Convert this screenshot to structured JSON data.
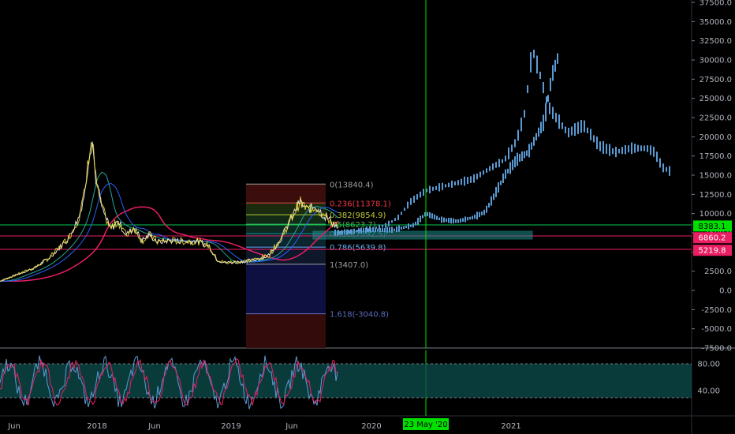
{
  "chart_data": {
    "type": "line",
    "y_axis": {
      "min": -7500,
      "max": 37500,
      "ticks": [
        "37500.0",
        "35000.0",
        "32500.0",
        "30000.0",
        "27500.0",
        "25000.0",
        "22500.0",
        "20000.0",
        "17500.0",
        "15000.0",
        "12500.0",
        "10000.0",
        "7500.0",
        "5000.0",
        "2500.0",
        "0.0",
        "-2500.0",
        "-5000.0",
        "-7500.0"
      ]
    },
    "x_axis": {
      "ticks": [
        "Jun",
        "2018",
        "Jun",
        "2019",
        "Jun",
        "2020",
        "2021"
      ],
      "crosshair_label": "23 May '20"
    },
    "price_badges": [
      {
        "label": "8383.1",
        "value": 8383.1,
        "color": "#00e000"
      },
      {
        "label": "6860.2",
        "value": 6860.2,
        "color": "#e91e63"
      },
      {
        "label": "5219.8",
        "value": 5219.8,
        "color": "#e91e63"
      }
    ],
    "fib_levels": [
      {
        "label": "0(13840.4)",
        "value": 13840.4,
        "color": "#9e9e9e"
      },
      {
        "label": "0.236(11378.1)",
        "value": 11378.1,
        "color": "#f23645"
      },
      {
        "label": "0.382(9854.9)",
        "value": 9854.9,
        "color": "#c0ca33"
      },
      {
        "label": "0.5(8623.7)",
        "value": 8623.7,
        "color": "#4caf50"
      },
      {
        "label": "0.618(7392.5)",
        "value": 7392.5,
        "color": "#089981"
      },
      {
        "label": "0.786(5639.8)",
        "value": 5639.8,
        "color": "#64b5f6"
      },
      {
        "label": "1(3407.0)",
        "value": 3407.0,
        "color": "#9e9e9e"
      },
      {
        "label": "1.618(-3040.8)",
        "value": -3040.8,
        "color": "#5c6bc0"
      }
    ],
    "historical_price": [
      [
        0,
        1200
      ],
      [
        25,
        2200
      ],
      [
        45,
        3000
      ],
      [
        62,
        4200
      ],
      [
        75,
        5500
      ],
      [
        88,
        7000
      ],
      [
        100,
        9500
      ],
      [
        108,
        13000
      ],
      [
        113,
        18000
      ],
      [
        117,
        19500
      ],
      [
        122,
        14000
      ],
      [
        130,
        10500
      ],
      [
        140,
        8000
      ],
      [
        150,
        9000
      ],
      [
        160,
        7200
      ],
      [
        170,
        8200
      ],
      [
        180,
        6500
      ],
      [
        190,
        7200
      ],
      [
        200,
        6300
      ],
      [
        215,
        6500
      ],
      [
        230,
        6400
      ],
      [
        250,
        6400
      ],
      [
        265,
        5800
      ],
      [
        275,
        4000
      ],
      [
        285,
        3600
      ],
      [
        300,
        3700
      ],
      [
        320,
        3900
      ],
      [
        340,
        4500
      ],
      [
        355,
        6500
      ],
      [
        370,
        9500
      ],
      [
        380,
        11500
      ],
      [
        390,
        10500
      ],
      [
        400,
        11000
      ],
      [
        410,
        9800
      ],
      [
        420,
        9000
      ],
      [
        430,
        8000
      ]
    ],
    "projection_upper": [
      [
        425,
        7600
      ],
      [
        450,
        7700
      ],
      [
        475,
        8100
      ],
      [
        490,
        8500
      ],
      [
        505,
        9500
      ],
      [
        520,
        11500
      ],
      [
        540,
        13000
      ],
      [
        560,
        13500
      ],
      [
        580,
        14000
      ],
      [
        600,
        14500
      ],
      [
        620,
        15800
      ],
      [
        640,
        17000
      ],
      [
        655,
        19500
      ],
      [
        665,
        23000
      ],
      [
        670,
        27000
      ],
      [
        675,
        31500
      ],
      [
        685,
        28000
      ],
      [
        695,
        24000
      ],
      [
        705,
        22500
      ],
      [
        720,
        20500
      ],
      [
        740,
        21500
      ],
      [
        760,
        18800
      ],
      [
        780,
        18000
      ],
      [
        800,
        18500
      ],
      [
        820,
        18500
      ],
      [
        830,
        18000
      ],
      [
        840,
        16000
      ],
      [
        850,
        15500
      ]
    ],
    "projection_lower": [
      [
        425,
        7400
      ],
      [
        460,
        7800
      ],
      [
        500,
        7900
      ],
      [
        525,
        8500
      ],
      [
        540,
        10000
      ],
      [
        560,
        9200
      ],
      [
        580,
        9000
      ],
      [
        600,
        9500
      ],
      [
        615,
        10200
      ],
      [
        625,
        12000
      ],
      [
        640,
        15000
      ],
      [
        655,
        17000
      ],
      [
        670,
        18000
      ],
      [
        680,
        20000
      ],
      [
        690,
        22000
      ],
      [
        700,
        28000
      ],
      [
        708,
        30500
      ]
    ],
    "oscillator": {
      "band_upper": 80,
      "band_lower": 20,
      "ticks": [
        "80.00",
        "40.00"
      ]
    }
  }
}
